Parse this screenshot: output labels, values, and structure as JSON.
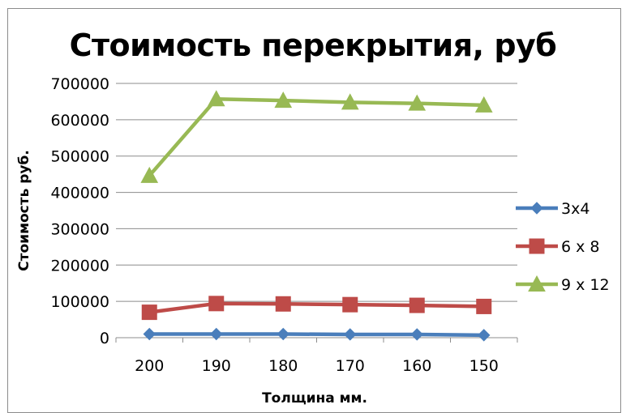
{
  "chart_data": {
    "type": "line",
    "title": "Стоимость перекрытия, руб",
    "xlabel": "Толщина мм.",
    "ylabel": "Стоимость руб.",
    "categories": [
      "200",
      "190",
      "180",
      "170",
      "160",
      "150"
    ],
    "ylim": [
      0,
      700000
    ],
    "yticks": [
      "0",
      "100000",
      "200000",
      "300000",
      "400000",
      "500000",
      "600000",
      "700000"
    ],
    "grid": true,
    "legend_position": "right",
    "series": [
      {
        "name": "3x4",
        "marker": "diamond",
        "color": "#4a7ebb",
        "values": [
          10000,
          10000,
          10000,
          9000,
          9000,
          7000
        ]
      },
      {
        "name": "6 x 8",
        "marker": "square",
        "color": "#be4b48",
        "values": [
          70000,
          94000,
          93000,
          91000,
          89000,
          86000
        ]
      },
      {
        "name": "9 x 12",
        "marker": "triangle",
        "color": "#98b954",
        "values": [
          446000,
          657000,
          653000,
          648000,
          645000,
          640000
        ]
      }
    ]
  }
}
